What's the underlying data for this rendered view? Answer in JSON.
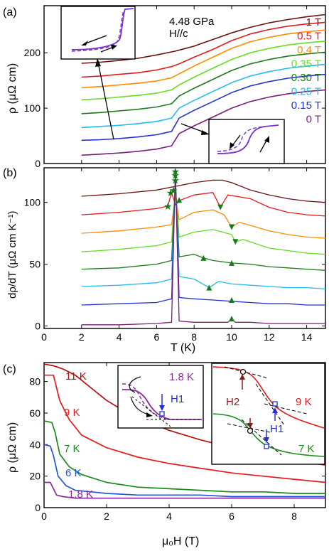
{
  "figure": {
    "panel_a_label": "(a)",
    "panel_b_label": "(b)",
    "panel_c_label": "(c)"
  },
  "chart_data": [
    {
      "panel": "(a)",
      "type": "line",
      "ylabel": "ρ (μΩ cm)",
      "xlim": [
        0,
        15
      ],
      "ylim": [
        0,
        285
      ],
      "yticks": [
        0,
        100,
        200
      ],
      "annotation": [
        "4.48 GPa",
        "H//c"
      ],
      "legend_labels": [
        {
          "text": "1 T",
          "color": "#6b0f0f"
        },
        {
          "text": "0.5 T",
          "color": "#e41a1c"
        },
        {
          "text": "0.4 T",
          "color": "#ff8c00"
        },
        {
          "text": "0.35 T",
          "color": "#66dd22"
        },
        {
          "text": "0.30 T",
          "color": "#1a7a1a"
        },
        {
          "text": "0.25 T",
          "color": "#22bbee"
        },
        {
          "text": "0.15 T",
          "color": "#2233cc"
        },
        {
          "text": "0 T",
          "color": "#7a1f7a"
        }
      ],
      "series": [
        {
          "name": "1 T",
          "color": "#6b0f0f",
          "x": [
            2,
            3,
            4,
            5,
            6,
            7,
            8,
            9,
            10,
            11,
            12,
            13,
            14,
            15
          ],
          "y": [
            181,
            183,
            186,
            190,
            196,
            203,
            212,
            224,
            236,
            246,
            254,
            260,
            265,
            269
          ]
        },
        {
          "name": "0.5 T",
          "color": "#e41a1c",
          "x": [
            2,
            3,
            4,
            5,
            6,
            6.8,
            7.2,
            8,
            9,
            10,
            11,
            12,
            13,
            14,
            15
          ],
          "y": [
            156,
            158,
            161,
            164,
            169,
            175,
            180,
            192,
            206,
            222,
            234,
            242,
            248,
            252,
            255
          ]
        },
        {
          "name": "0.4 T",
          "color": "#ff8c00",
          "x": [
            2,
            3,
            4,
            5,
            6,
            6.8,
            7.2,
            8,
            9,
            10,
            11,
            12,
            13,
            14,
            15
          ],
          "y": [
            137,
            139,
            142,
            145,
            149,
            155,
            162,
            176,
            192,
            208,
            220,
            228,
            234,
            238,
            241
          ]
        },
        {
          "name": "0.35 T",
          "color": "#66dd22",
          "x": [
            2,
            3,
            4,
            5,
            6,
            6.8,
            7.2,
            8,
            9,
            10,
            11,
            12,
            13,
            14,
            15
          ],
          "y": [
            115,
            117,
            120,
            123,
            127,
            133,
            142,
            156,
            172,
            188,
            200,
            208,
            214,
            218,
            221
          ]
        },
        {
          "name": "0.30 T",
          "color": "#1a7a1a",
          "x": [
            2,
            3,
            4,
            5,
            6,
            6.8,
            7.2,
            8,
            9,
            10,
            11,
            12,
            13,
            14,
            15
          ],
          "y": [
            90,
            92,
            95,
            98,
            102,
            108,
            122,
            136,
            152,
            168,
            180,
            188,
            194,
            198,
            201
          ]
        },
        {
          "name": "0.25 T",
          "color": "#22bbee",
          "x": [
            2,
            3,
            4,
            5,
            6,
            6.8,
            7.2,
            8,
            9,
            10,
            11,
            12,
            13,
            14,
            15
          ],
          "y": [
            65,
            67,
            69,
            72,
            76,
            82,
            100,
            114,
            130,
            146,
            158,
            166,
            172,
            176,
            179
          ]
        },
        {
          "name": "0.15 T",
          "color": "#2233cc",
          "x": [
            2,
            3,
            4,
            5,
            6,
            6.8,
            7.2,
            8,
            9,
            10,
            11,
            12,
            13,
            14,
            15
          ],
          "y": [
            42,
            43,
            45,
            48,
            52,
            58,
            82,
            96,
            112,
            128,
            140,
            148,
            154,
            158,
            161
          ]
        },
        {
          "name": "0 T",
          "color": "#7a1f7a",
          "x": [
            2,
            3,
            4,
            5,
            6,
            6.8,
            7.2,
            8,
            9,
            10,
            11,
            12,
            13,
            14,
            15
          ],
          "y": [
            15,
            17,
            19,
            22,
            26,
            32,
            54,
            68,
            84,
            100,
            112,
            120,
            126,
            130,
            133
          ]
        }
      ]
    },
    {
      "panel": "(b)",
      "type": "line",
      "xlabel": "T (K)",
      "ylabel": "dρ/dT (μΩ cm K⁻¹)",
      "xlim": [
        0,
        15
      ],
      "ylim": [
        -2,
        128
      ],
      "xticks": [
        0,
        2,
        4,
        6,
        8,
        10,
        12,
        14
      ],
      "yticks": [
        0,
        50,
        100
      ],
      "series": [
        {
          "name": "1 T",
          "color": "#6b0f0f",
          "x": [
            2,
            4,
            6,
            7,
            8,
            9,
            9.5,
            10,
            11,
            12,
            13,
            14,
            15
          ],
          "y": [
            105,
            107,
            110,
            113,
            116,
            118,
            118,
            116,
            110,
            106,
            103,
            101,
            100
          ]
        },
        {
          "name": "0.5 T",
          "color": "#e41a1c",
          "x": [
            2,
            4,
            6,
            6.6,
            6.8,
            7.0,
            7.3,
            8,
            9,
            9.4,
            9.8,
            11,
            12,
            13,
            14,
            15
          ],
          "y": [
            90,
            92,
            95,
            97,
            108,
            98,
            102,
            106,
            108,
            96,
            106,
            103,
            96,
            92,
            90,
            89
          ]
        },
        {
          "name": "0.4 T",
          "color": "#ff8c00",
          "x": [
            2,
            4,
            6,
            6.8,
            7.0,
            7.2,
            8,
            9,
            9.6,
            10.0,
            10.4,
            12,
            13,
            14,
            15
          ],
          "y": [
            75,
            77,
            80,
            82,
            105,
            86,
            92,
            94,
            90,
            80,
            84,
            77,
            74,
            72,
            71
          ]
        },
        {
          "name": "0.35 T",
          "color": "#66dd22",
          "x": [
            2,
            4,
            6,
            6.8,
            7.0,
            7.2,
            8,
            9,
            10,
            10.2,
            10.6,
            12,
            13,
            14,
            15
          ],
          "y": [
            60,
            62,
            65,
            68,
            112,
            72,
            76,
            78,
            74,
            68,
            70,
            63,
            61,
            59,
            58
          ]
        },
        {
          "name": "0.30 T",
          "color": "#1a7a1a",
          "x": [
            2,
            4,
            6,
            6.8,
            7.0,
            7.2,
            8,
            8.5,
            9,
            10,
            11,
            12,
            13,
            14,
            15
          ],
          "y": [
            46,
            47,
            50,
            53,
            118,
            56,
            58,
            55,
            53,
            51,
            50,
            48,
            47,
            46,
            45
          ]
        },
        {
          "name": "0.25 T",
          "color": "#22bbee",
          "x": [
            2,
            4,
            6,
            6.8,
            7.0,
            7.2,
            8,
            8.8,
            9.3,
            10,
            11,
            12,
            13,
            14,
            15
          ],
          "y": [
            32,
            33,
            35,
            38,
            120,
            40,
            38,
            31,
            36,
            34,
            33,
            32,
            31,
            31,
            30
          ]
        },
        {
          "name": "0.15 T",
          "color": "#2233cc",
          "x": [
            2,
            4,
            6,
            6.8,
            7.0,
            7.2,
            8,
            9,
            10,
            11,
            12,
            13,
            14,
            15
          ],
          "y": [
            17,
            18,
            19,
            22,
            122,
            23,
            22,
            21,
            20,
            19,
            18,
            18,
            17,
            17
          ]
        },
        {
          "name": "0 T",
          "color": "#7a1f7a",
          "x": [
            2,
            4,
            6,
            6.8,
            7.0,
            7.2,
            8,
            9,
            9.8,
            10.0,
            10.2,
            11,
            12,
            13,
            14,
            15
          ],
          "y": [
            1,
            1,
            2,
            3,
            125,
            4,
            3,
            3,
            3,
            6,
            3,
            3,
            2,
            2,
            2,
            2
          ]
        }
      ],
      "markers": {
        "stars": [
          [
            6.6,
            97
          ],
          [
            6.75,
            108
          ],
          [
            6.9,
            110
          ],
          [
            7.0,
            118
          ],
          [
            7.0,
            122
          ],
          [
            7.0,
            125
          ]
        ],
        "down_triangles": [
          [
            9.4,
            96
          ],
          [
            10.0,
            80
          ],
          [
            10.2,
            68
          ]
        ],
        "up_triangles": [
          [
            7.2,
            102
          ],
          [
            8.5,
            55
          ],
          [
            8.8,
            31
          ],
          [
            10.0,
            51
          ],
          [
            10.0,
            21
          ],
          [
            10.0,
            6
          ]
        ]
      }
    },
    {
      "panel": "(c)",
      "type": "line",
      "xlabel": "μ₀H (T)",
      "ylabel": "ρ (μΩ cm)",
      "xlim": [
        0,
        9
      ],
      "ylim": [
        0,
        92
      ],
      "xticks": [
        0,
        2,
        4,
        6,
        8
      ],
      "yticks": [
        0,
        20,
        40,
        60,
        80
      ],
      "series": [
        {
          "name": "11 K",
          "color": "#b41010",
          "x": [
            0,
            0.3,
            0.6,
            1.0,
            1.5,
            2,
            2.5,
            3,
            4,
            5,
            6,
            7,
            8,
            9
          ],
          "y": [
            91,
            90,
            88,
            84,
            76,
            68,
            62,
            57,
            49,
            43,
            38,
            34,
            30,
            27
          ]
        },
        {
          "name": "9 K",
          "color": "#e41a1c",
          "x": [
            0,
            0.3,
            0.35,
            0.5,
            0.8,
            1.2,
            2,
            3,
            4,
            5,
            6,
            7,
            8,
            9
          ],
          "y": [
            84,
            84,
            80,
            68,
            56,
            46,
            38,
            32,
            28,
            25,
            22,
            20,
            18,
            16
          ]
        },
        {
          "name": "7 K",
          "color": "#1a8a1a",
          "x": [
            0,
            0.25,
            0.35,
            0.5,
            0.8,
            1.2,
            2,
            3,
            4,
            5,
            6,
            7,
            8,
            9
          ],
          "y": [
            55,
            54,
            48,
            34,
            26,
            21,
            16,
            13,
            12,
            11,
            10,
            10,
            9,
            9
          ]
        },
        {
          "name": "6 K",
          "color": "#2255dd",
          "x": [
            0,
            0.2,
            0.3,
            0.45,
            0.7,
            1.0,
            2,
            3,
            4,
            5,
            6,
            7,
            8,
            9
          ],
          "y": [
            40,
            39,
            33,
            20,
            14,
            11,
            9,
            8,
            8,
            8,
            7,
            7,
            7,
            7
          ]
        },
        {
          "name": "1.8 K",
          "color": "#8a2a9a",
          "x": [
            0,
            0.2,
            0.3,
            0.4,
            0.6,
            1.0,
            2,
            3,
            4,
            5,
            6,
            7,
            8,
            9
          ],
          "y": [
            16,
            16,
            12,
            8,
            7,
            6,
            6,
            6,
            6,
            6,
            6,
            6,
            6,
            6
          ]
        }
      ],
      "curve_labels": [
        {
          "text": "11 K",
          "color": "#b41010"
        },
        {
          "text": "9 K",
          "color": "#e41a1c"
        },
        {
          "text": "7 K",
          "color": "#1a8a1a"
        },
        {
          "text": "6 K",
          "color": "#2255dd"
        },
        {
          "text": "1.8 K",
          "color": "#8a2a9a"
        }
      ],
      "inset_left": {
        "labels": [
          "1.8 K",
          "H1"
        ]
      },
      "inset_right": {
        "labels": [
          "H2",
          "9 K",
          "H1",
          "7 K"
        ]
      }
    }
  ]
}
